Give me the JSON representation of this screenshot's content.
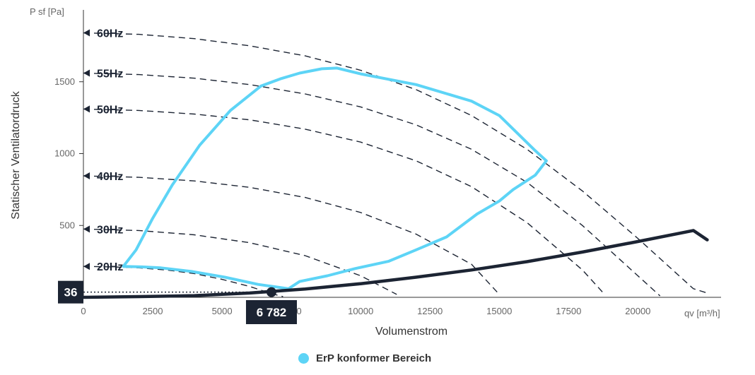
{
  "chart_data": {
    "type": "line",
    "ylabel": "Statischer Ventilatordruck",
    "y_unit": "P sf [Pa]",
    "xlabel": "Volumenstrom",
    "x_unit": "qv [m³/h]",
    "xlim": [
      0,
      23000
    ],
    "ylim": [
      0,
      2000
    ],
    "x_ticks": [
      "0",
      "2500",
      "5000",
      "7500",
      "10000",
      "12500",
      "15000",
      "17500",
      "20000"
    ],
    "x_tick_values": [
      0,
      2500,
      5000,
      7500,
      10000,
      12500,
      15000,
      17500,
      20000
    ],
    "y_ticks": [
      "500",
      "1000",
      "1500"
    ],
    "y_tick_values": [
      500,
      1000,
      1500
    ],
    "grid": false,
    "series": [
      {
        "name": "60Hz",
        "style": "dashed",
        "x": [
          0,
          2000,
          4000,
          6000,
          8000,
          10000,
          12000,
          14000,
          16000,
          18000,
          20000,
          22000,
          22500
        ],
        "y": [
          1840,
          1830,
          1800,
          1750,
          1680,
          1580,
          1445,
          1265,
          1030,
          740,
          410,
          60,
          30
        ]
      },
      {
        "name": "55Hz",
        "style": "dashed",
        "x": [
          0,
          2000,
          4000,
          6000,
          8000,
          10000,
          12000,
          14000,
          16000,
          18000,
          20000,
          20800
        ],
        "y": [
          1560,
          1550,
          1525,
          1480,
          1415,
          1325,
          1200,
          1030,
          800,
          500,
          150,
          10
        ]
      },
      {
        "name": "50Hz",
        "style": "dashed",
        "x": [
          0,
          2000,
          4000,
          6000,
          8000,
          10000,
          12000,
          14000,
          16000,
          18000,
          18800
        ],
        "y": [
          1310,
          1300,
          1275,
          1235,
          1170,
          1080,
          950,
          770,
          520,
          190,
          20
        ]
      },
      {
        "name": "40Hz",
        "style": "dashed",
        "x": [
          0,
          2000,
          4000,
          6000,
          8000,
          10000,
          12000,
          14000,
          15000
        ],
        "y": [
          845,
          835,
          810,
          765,
          695,
          590,
          440,
          230,
          20
        ]
      },
      {
        "name": "30Hz",
        "style": "dashed",
        "x": [
          0,
          2000,
          4000,
          6000,
          8000,
          10000,
          11300
        ],
        "y": [
          475,
          465,
          435,
          380,
          290,
          150,
          20
        ]
      },
      {
        "name": "20Hz",
        "style": "dashed",
        "x": [
          0,
          1000,
          2000,
          3000,
          4000,
          5000,
          6000,
          6800,
          7200
        ],
        "y": [
          215,
          212,
          205,
          190,
          165,
          125,
          75,
          25,
          5
        ]
      },
      {
        "name": "",
        "style": "system",
        "x": [
          0,
          2000,
          4000,
          6000,
          8000,
          10000,
          12000,
          14000,
          16000,
          18000,
          20000,
          22000,
          22500
        ],
        "y": [
          0,
          5,
          12,
          30,
          58,
          95,
          140,
          190,
          248,
          315,
          388,
          465,
          400
        ]
      },
      {
        "name": "ErP konformer Bereich",
        "style": "region",
        "x": [
          1440,
          1900,
          2500,
          3200,
          4200,
          5300,
          6400,
          7100,
          7800,
          8600,
          9150,
          10000,
          12000,
          14000,
          15000,
          16300,
          16700,
          16300,
          15500,
          15000,
          14200,
          13100,
          12000,
          11000,
          9800,
          8800,
          7800,
          7400,
          6300,
          5100,
          3900,
          2800,
          2100,
          1440
        ],
        "y": [
          215,
          330,
          550,
          780,
          1060,
          1300,
          1470,
          1520,
          1560,
          1590,
          1595,
          1555,
          1480,
          1365,
          1265,
          1020,
          950,
          850,
          750,
          670,
          580,
          420,
          330,
          250,
          200,
          150,
          110,
          60,
          90,
          140,
          180,
          205,
          212,
          215
        ]
      }
    ],
    "operating_point": {
      "x": 6782,
      "y": 36,
      "x_label": "6 782",
      "y_label": "36"
    }
  },
  "legend": {
    "label": "ErP konformer Bereich",
    "color": "#5dd4f6"
  },
  "colors": {
    "curve": "#1c2433",
    "region": "#5dd4f6",
    "axis": "#333333",
    "label_box": "#1c2433"
  }
}
